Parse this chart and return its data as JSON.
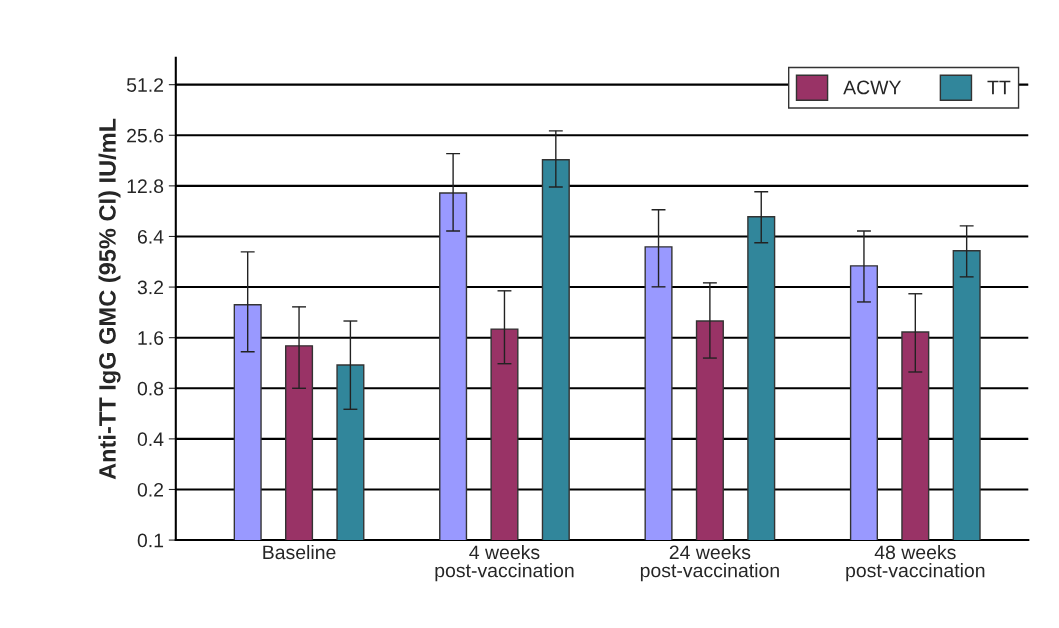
{
  "chart_data": {
    "type": "bar",
    "ylabel": "Anti-TT IgG GMC (95% CI) IU/mL",
    "categories": [
      "Baseline",
      "4 weeks\npost-vaccination",
      "24 weeks\npost-vaccination",
      "48 weeks\npost-vaccination"
    ],
    "series": [
      {
        "color": "#9999ff",
        "values": [
          2.51,
          11.6,
          5.55,
          4.28
        ],
        "errors": [
          [
            1.32,
            5.18
          ],
          [
            6.9,
            19.9
          ],
          [
            3.21,
            9.22
          ],
          [
            2.61,
            6.9
          ]
        ]
      },
      {
        "name": "ACWY",
        "color": "#993366",
        "values": [
          1.43,
          1.8,
          2.01,
          1.73
        ],
        "errors": [
          [
            0.8,
            2.44
          ],
          [
            1.12,
            3.04
          ],
          [
            1.21,
            3.39
          ],
          [
            1.0,
            2.92
          ]
        ]
      },
      {
        "name": "TT",
        "color": "#31869b",
        "values": [
          1.1,
          18.3,
          8.38,
          5.26
        ],
        "errors": [
          [
            0.6,
            2.01
          ],
          [
            12.6,
            27.2
          ],
          [
            5.87,
            11.8
          ],
          [
            3.68,
            7.4
          ]
        ]
      }
    ],
    "log": "y",
    "ylim": [
      0.1,
      74
    ],
    "yticks": [
      0.1,
      0.2,
      0.4,
      0.8,
      1.6,
      3.2,
      6.4,
      12.8,
      25.6,
      51.2
    ],
    "grid": "y",
    "legend": "top right"
  }
}
